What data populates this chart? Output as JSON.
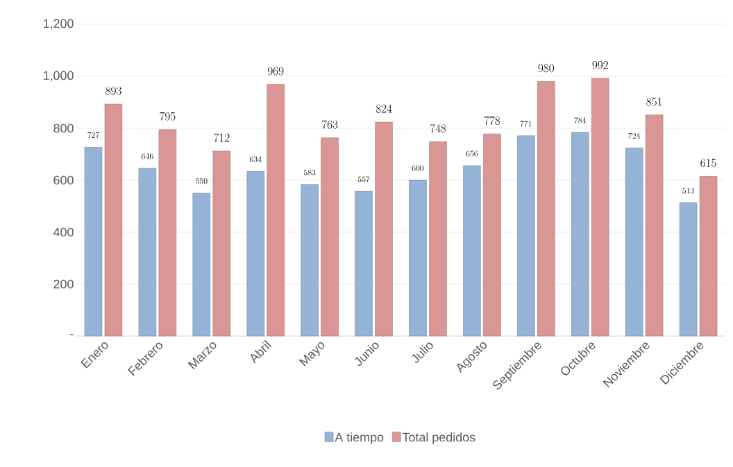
{
  "chart_data": {
    "type": "bar",
    "categories": [
      "Enero",
      "Febrero",
      "Marzo",
      "Abril",
      "Mayo",
      "Junio",
      "Julio",
      "Agosto",
      "Septiembre",
      "Octubre",
      "Noviembre",
      "Diciembre"
    ],
    "series": [
      {
        "name": "A tiempo",
        "color": "#95b3d7",
        "values": [
          727,
          646,
          550,
          634,
          583,
          557,
          600,
          656,
          771,
          784,
          724,
          513
        ]
      },
      {
        "name": "Total pedidos",
        "color": "#d99694",
        "values": [
          893,
          795,
          712,
          969,
          763,
          824,
          748,
          778,
          980,
          992,
          851,
          615
        ]
      }
    ],
    "ylim": [
      0,
      1200
    ],
    "yticks": [
      {
        "value": 0,
        "label": "-"
      },
      200,
      400,
      600,
      800,
      {
        "value": 1000,
        "label": "1,000"
      },
      {
        "value": 1200,
        "label": "1,200"
      }
    ],
    "grid": "y",
    "legend": "bottom",
    "data_labels": true
  }
}
